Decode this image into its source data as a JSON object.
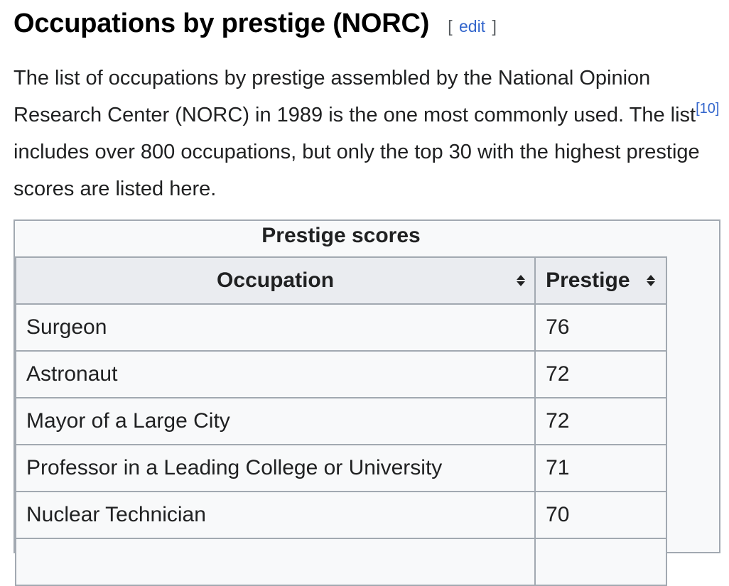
{
  "section": {
    "title": "Occupations by prestige (NORC)",
    "edit_open": "[",
    "edit_label": "edit",
    "edit_close": "]"
  },
  "paragraph": {
    "text_before_ref": "The list of occupations by prestige assembled by the National Opinion Research Center (NORC) in 1989 is the one most commonly used. The list",
    "ref_label": "[10]",
    "text_after_ref": " includes over 800 occupations, but only the top 30 with the highest prestige scores are listed here."
  },
  "table": {
    "caption": "Prestige scores",
    "headers": [
      "Occupation",
      "Prestige"
    ],
    "sort_icon": "sort-updown-icon",
    "rows": [
      {
        "occupation": "Surgeon",
        "prestige": "76"
      },
      {
        "occupation": "Astronaut",
        "prestige": "72"
      },
      {
        "occupation": "Mayor of a Large City",
        "prestige": "72"
      },
      {
        "occupation": "Professor in a Leading College or University",
        "prestige": "71"
      },
      {
        "occupation": "Nuclear Technician",
        "prestige": "70"
      }
    ]
  },
  "colors": {
    "link": "#3366cc",
    "header_bg": "#eaecf0",
    "table_bg": "#f8f9fa",
    "border": "#a2a9b1",
    "text": "#202122"
  }
}
